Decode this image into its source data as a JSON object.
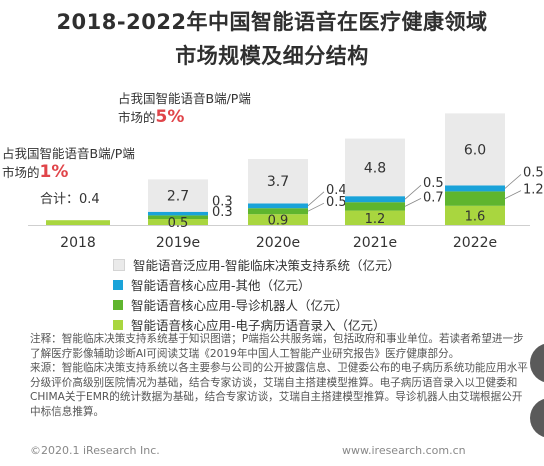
{
  "title": {
    "line1": "2018-2022年中国智能语音在医疗健康领域",
    "line2": "市场规模及细分结构"
  },
  "annotations": {
    "share_2018": {
      "text": "占我国智能语音B端/P端市场的",
      "pct": "1%"
    },
    "share_2022": {
      "text": "占我国智能语音B端/P端市场的",
      "pct": "5%"
    },
    "total_2018": "合计：0.4"
  },
  "colors": {
    "cds": "#eaeaea",
    "other": "#1aa3d9",
    "robot": "#5fb52e",
    "emr": "#a9d63f",
    "highlight": "#e0454a"
  },
  "chart_data": {
    "type": "bar",
    "stacked": true,
    "unit": "亿元",
    "categories": [
      "2018",
      "2019e",
      "2020e",
      "2021e",
      "2022e"
    ],
    "series": [
      {
        "name": "智能语音核心应用-电子病历语音录入（亿元）",
        "values": [
          0.4,
          0.5,
          0.9,
          1.2,
          1.6
        ]
      },
      {
        "name": "智能语音核心应用-导诊机器人（亿元）",
        "values": [
          0,
          0.3,
          0.5,
          0.7,
          1.2
        ]
      },
      {
        "name": "智能语音核心应用-其他（亿元）",
        "values": [
          0,
          0.3,
          0.4,
          0.5,
          0.5
        ]
      },
      {
        "name": "智能语音泛应用-智能临床决策支持系统（亿元）",
        "values": [
          0,
          2.7,
          3.7,
          4.8,
          6.0
        ]
      }
    ],
    "labels": [
      [],
      [
        "0.5",
        "0.3",
        "0.3",
        "2.7"
      ],
      [
        "0.9",
        "0.5",
        "0.4",
        "3.7"
      ],
      [
        "1.2",
        "0.7",
        "0.5",
        "4.8"
      ],
      [
        "1.6",
        "1.2",
        "0.5",
        "6.0"
      ]
    ],
    "legend_order": [
      3,
      2,
      1,
      0
    ],
    "legend_position": "bottom-left"
  },
  "notes": {
    "note1": "注释：智能临床决策支持系统基于知识图谱；P端指公共服务端，包括政府和事业单位。若读者希望进一步了解医疗影像辅助诊断AI可阅读艾瑞《2019年中国人工智能产业研究报告》医疗健康部分。",
    "source": "来源：智能临床决策支持系统以各主要参与公司的公开披露信息、卫健委公布的电子病历系统功能应用水平分级评价高级别医院情况为基础，结合专家访谈，艾瑞自主搭建模型推算。电子病历语音录入以卫健委和CHIMA关于EMR的统计数据为基础，结合专家访谈，艾瑞自主搭建模型推算。导诊机器人由艾瑞根据公开中标信息推算。"
  },
  "footer": {
    "left": "©2020.1 iResearch Inc.",
    "right": "www.iresearch.com.cn"
  }
}
